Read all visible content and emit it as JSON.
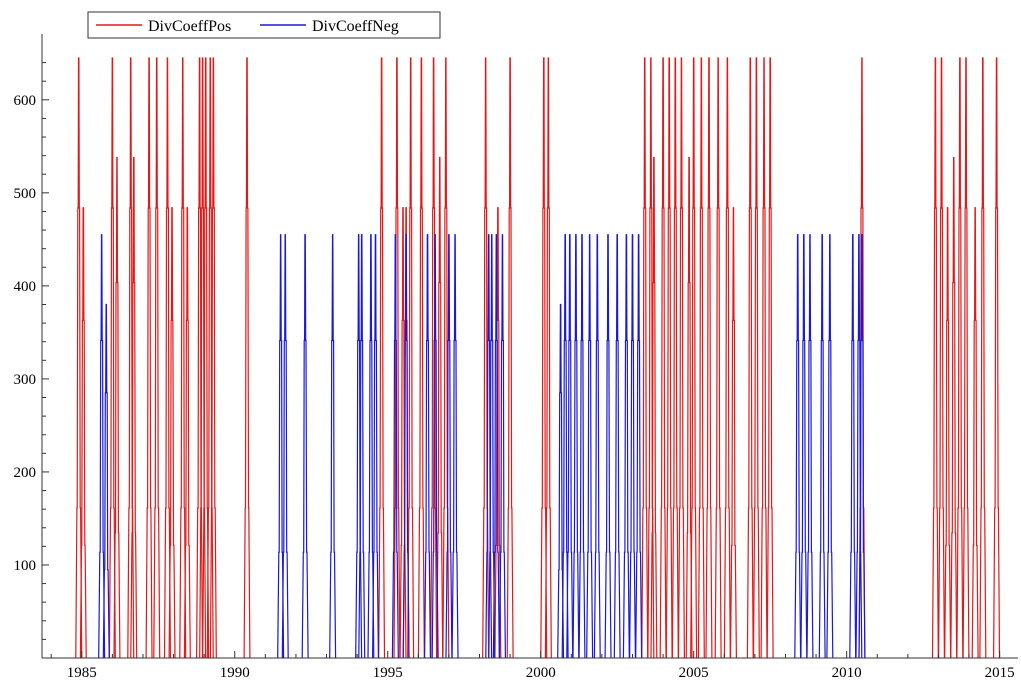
{
  "chart_data": {
    "type": "line",
    "title": "",
    "xlabel": "",
    "ylabel": "",
    "xlim": [
      1983.7,
      2015.6
    ],
    "ylim": [
      0,
      660
    ],
    "x_ticks": [
      1985,
      1990,
      1995,
      2000,
      2005,
      2010,
      2015
    ],
    "y_ticks": [
      100,
      200,
      300,
      400,
      500,
      600
    ],
    "grid": false,
    "legend": {
      "placement": "top-left",
      "boxed": true
    },
    "series": [
      {
        "name": "DivCoeffPos",
        "color": "#e01a1a",
        "spikes": [
          [
            1984.9,
            645
          ],
          [
            1985.05,
            484
          ],
          [
            1986.0,
            645
          ],
          [
            1986.15,
            538
          ],
          [
            1986.6,
            645
          ],
          [
            1986.7,
            538
          ],
          [
            1987.2,
            645
          ],
          [
            1987.45,
            645
          ],
          [
            1987.8,
            645
          ],
          [
            1987.95,
            484
          ],
          [
            1988.3,
            645
          ],
          [
            1988.45,
            484
          ],
          [
            1988.85,
            645
          ],
          [
            1988.95,
            645
          ],
          [
            1989.05,
            645
          ],
          [
            1989.2,
            645
          ],
          [
            1989.3,
            645
          ],
          [
            1990.4,
            645
          ],
          [
            1994.8,
            645
          ],
          [
            1995.3,
            645
          ],
          [
            1995.5,
            484
          ],
          [
            1995.6,
            484
          ],
          [
            1995.75,
            645
          ],
          [
            1996.1,
            645
          ],
          [
            1996.5,
            645
          ],
          [
            1996.7,
            538
          ],
          [
            1996.9,
            645
          ],
          [
            1998.2,
            645
          ],
          [
            1998.6,
            484
          ],
          [
            1999.0,
            645
          ],
          [
            2000.1,
            645
          ],
          [
            2000.25,
            645
          ],
          [
            2003.4,
            645
          ],
          [
            2003.6,
            645
          ],
          [
            2003.7,
            538
          ],
          [
            2004.0,
            645
          ],
          [
            2004.2,
            645
          ],
          [
            2004.4,
            645
          ],
          [
            2004.6,
            645
          ],
          [
            2004.85,
            538
          ],
          [
            2005.0,
            645
          ],
          [
            2005.25,
            645
          ],
          [
            2005.5,
            645
          ],
          [
            2005.8,
            645
          ],
          [
            2006.1,
            645
          ],
          [
            2006.3,
            484
          ],
          [
            2006.85,
            645
          ],
          [
            2007.05,
            645
          ],
          [
            2007.3,
            645
          ],
          [
            2007.5,
            645
          ],
          [
            2010.5,
            645
          ],
          [
            2012.9,
            645
          ],
          [
            2013.1,
            645
          ],
          [
            2013.3,
            484
          ],
          [
            2013.5,
            538
          ],
          [
            2013.7,
            645
          ],
          [
            2013.9,
            645
          ],
          [
            2014.2,
            484
          ],
          [
            2014.45,
            645
          ],
          [
            2014.9,
            645
          ]
        ]
      },
      {
        "name": "DivCoeffNeg",
        "color": "#1a1ad6",
        "spikes": [
          [
            1985.65,
            455
          ],
          [
            1985.8,
            380
          ],
          [
            1991.5,
            455
          ],
          [
            1991.65,
            455
          ],
          [
            1992.3,
            455
          ],
          [
            1993.2,
            455
          ],
          [
            1994.05,
            455
          ],
          [
            1994.15,
            455
          ],
          [
            1994.45,
            455
          ],
          [
            1994.6,
            455
          ],
          [
            1995.25,
            455
          ],
          [
            1995.6,
            455
          ],
          [
            1996.3,
            455
          ],
          [
            1996.55,
            455
          ],
          [
            1997.0,
            455
          ],
          [
            1997.2,
            455
          ],
          [
            1998.3,
            455
          ],
          [
            1998.4,
            455
          ],
          [
            1998.55,
            455
          ],
          [
            1998.75,
            455
          ],
          [
            2000.65,
            380
          ],
          [
            2000.8,
            455
          ],
          [
            2000.95,
            455
          ],
          [
            2001.15,
            455
          ],
          [
            2001.35,
            455
          ],
          [
            2001.6,
            455
          ],
          [
            2001.85,
            455
          ],
          [
            2002.2,
            455
          ],
          [
            2002.5,
            455
          ],
          [
            2002.8,
            455
          ],
          [
            2003.0,
            455
          ],
          [
            2003.2,
            455
          ],
          [
            2008.4,
            455
          ],
          [
            2008.6,
            455
          ],
          [
            2008.8,
            455
          ],
          [
            2009.2,
            455
          ],
          [
            2009.45,
            455
          ],
          [
            2010.2,
            455
          ],
          [
            2010.4,
            455
          ],
          [
            2010.5,
            455
          ]
        ]
      }
    ]
  }
}
